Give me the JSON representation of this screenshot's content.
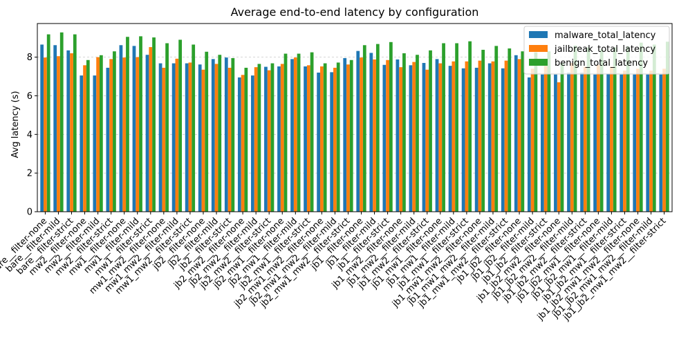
{
  "chart_data": {
    "type": "bar",
    "title": "Average end-to-end latency by configuration",
    "xlabel": "",
    "ylabel": "Avg latency (s)",
    "ylim": [
      0,
      9.74
    ],
    "yticks": [
      0,
      2,
      4,
      6,
      8
    ],
    "grid": "y-dashed",
    "legend_position": "top-right",
    "colors": [
      "#1f77b4",
      "#ff7f0e",
      "#2ca02c"
    ],
    "categories": [
      "bare__filter-none",
      "bare__filter-mild",
      "bare__filter-strict",
      "mw2__filter-none",
      "mw2__filter-mild",
      "mw2__filter-strict",
      "mw1__filter-none",
      "mw1__filter-mild",
      "mw1__filter-strict",
      "mw1_mw2__filter-none",
      "mw1_mw2__filter-mild",
      "mw1_mw2__filter-strict",
      "jb2__filter-none",
      "jb2__filter-mild",
      "jb2__filter-strict",
      "jb2_mw2__filter-none",
      "jb2_mw2__filter-mild",
      "jb2_mw2__filter-strict",
      "jb2_mw1__filter-none",
      "jb2_mw1__filter-mild",
      "jb2_mw1__filter-strict",
      "jb2_mw1_mw2__filter-none",
      "jb2_mw1_mw2__filter-mild",
      "jb2_mw1_mw2__filter-strict",
      "jb1__filter-none",
      "jb1__filter-mild",
      "jb1__filter-strict",
      "jb1_mw2__filter-none",
      "jb1_mw2__filter-mild",
      "jb1_mw2__filter-strict",
      "jb1_mw1__filter-none",
      "jb1_mw1__filter-mild",
      "jb1_mw1__filter-strict",
      "jb1_mw1_mw2__filter-none",
      "jb1_mw1_mw2__filter-mild",
      "jb1_mw1_mw2__filter-strict",
      "jb1_jb2__filter-none",
      "jb1_jb2__filter-mild",
      "jb1_jb2__filter-strict",
      "jb1_jb2_mw2__filter-none",
      "jb1_jb2_mw2__filter-mild",
      "jb1_jb2_mw2__filter-strict",
      "jb1_jb2_mw1__filter-none",
      "jb1_jb2_mw1__filter-mild",
      "jb1_jb2_mw1__filter-strict",
      "jb1_jb2_mw1_mw2__filter-none",
      "jb1_jb2_mw1_mw2__filter-mild",
      "jb1_jb2_mw1_mw2__filter-strict"
    ],
    "series": [
      {
        "name": "malware_total_latency",
        "values": [
          8.65,
          8.62,
          8.35,
          7.05,
          7.05,
          7.45,
          8.62,
          8.58,
          8.12,
          7.68,
          7.68,
          7.68,
          7.62,
          7.9,
          7.98,
          6.95,
          7.05,
          7.5,
          7.52,
          7.9,
          7.52,
          7.2,
          7.22,
          7.95,
          8.32,
          8.22,
          7.6,
          7.88,
          7.58,
          7.7,
          7.9,
          7.55,
          7.42,
          7.45,
          7.68,
          7.42,
          8.1,
          6.95,
          7.1,
          7.1,
          7.2,
          7.2,
          7.1,
          7.15,
          7.1,
          7.1,
          7.1,
          7.1
        ]
      },
      {
        "name": "jailbreak_total_latency",
        "values": [
          7.98,
          8.05,
          8.2,
          7.58,
          8.0,
          7.9,
          7.98,
          8.0,
          8.52,
          7.45,
          7.92,
          7.72,
          7.35,
          7.65,
          7.45,
          7.08,
          7.48,
          7.32,
          7.65,
          7.98,
          7.58,
          7.52,
          7.45,
          7.62,
          7.98,
          7.88,
          7.85,
          7.48,
          7.75,
          7.35,
          7.68,
          7.78,
          7.78,
          7.82,
          7.78,
          7.82,
          7.9,
          7.4,
          7.55,
          6.7,
          7.7,
          7.5,
          7.6,
          7.5,
          7.3,
          7.4,
          7.3,
          7.4
        ]
      },
      {
        "name": "benign_total_latency",
        "values": [
          9.18,
          9.28,
          9.18,
          7.85,
          8.1,
          8.3,
          9.05,
          9.08,
          9.02,
          8.72,
          8.9,
          8.65,
          8.28,
          8.12,
          7.95,
          7.45,
          7.65,
          7.68,
          8.18,
          8.18,
          8.25,
          7.68,
          7.72,
          7.85,
          8.62,
          8.68,
          8.78,
          8.2,
          8.12,
          8.35,
          8.72,
          8.72,
          8.82,
          8.38,
          8.58,
          8.45,
          8.3,
          8.25,
          8.3,
          7.7,
          8.6,
          8.5,
          8.4,
          8.5,
          8.55,
          8.75,
          8.65,
          8.8
        ]
      }
    ]
  }
}
